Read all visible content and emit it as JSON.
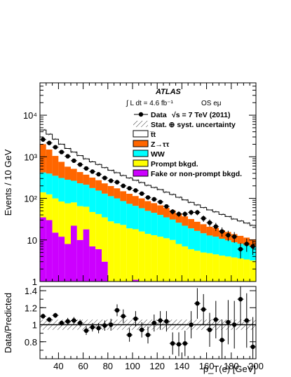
{
  "chart_data": [
    {
      "type": "stacked-bar-histogram",
      "title": "",
      "experiment_label": "ATLAS",
      "luminosity_label": "∫ L dt = 4.6 fb⁻¹",
      "channel_label": "OS eμ",
      "ylabel": "Events / 10 GeV",
      "xlabel": "",
      "yscale": "log",
      "ylim": [
        1,
        60000
      ],
      "xlim": [
        25,
        200
      ],
      "yticks": [
        {
          "v": 10,
          "label": "10"
        },
        {
          "v": 100,
          "label": "10²"
        },
        {
          "v": 1000,
          "label": "10³"
        },
        {
          "v": 10000,
          "label": "10⁴"
        }
      ],
      "bin_edges": [
        25,
        30,
        35,
        40,
        45,
        50,
        55,
        60,
        65,
        70,
        75,
        80,
        85,
        90,
        95,
        100,
        105,
        110,
        115,
        120,
        125,
        130,
        135,
        140,
        145,
        150,
        155,
        160,
        165,
        170,
        175,
        180,
        185,
        190,
        195,
        200
      ],
      "stack": [
        {
          "name": "Fake or non-prompt bkgd.",
          "color": "#cc00ff",
          "values": [
            35,
            30,
            15,
            12,
            8,
            22,
            10,
            18,
            7,
            6,
            3,
            1,
            1,
            1,
            1,
            1.1,
            1,
            1,
            1,
            1,
            1,
            1,
            1,
            1,
            1,
            1,
            1,
            1,
            1,
            1,
            1,
            1,
            1,
            1,
            1
          ]
        },
        {
          "name": "Prompt bkgd.",
          "color": "#ffff00",
          "values": [
            105,
            95,
            85,
            72,
            68,
            58,
            55,
            45,
            40,
            36,
            32,
            27,
            24,
            22,
            18,
            17,
            15,
            13,
            12,
            11,
            10,
            9,
            7,
            6,
            5,
            4.5,
            4,
            3.8,
            3.5,
            3.2,
            3,
            2.8,
            2.6,
            2.4,
            2.2
          ]
        },
        {
          "name": "WW",
          "color": "#00ffff",
          "values": [
            280,
            270,
            250,
            225,
            205,
            185,
            165,
            150,
            130,
            112,
            95,
            85,
            75,
            63,
            55,
            48,
            42,
            36,
            32,
            28,
            24,
            21,
            18,
            15,
            13,
            11,
            9.5,
            8,
            7.5,
            6.5,
            5.8,
            5,
            4.5,
            4,
            3.6
          ]
        },
        {
          "name": "Z→ττ",
          "color": "#ff6600",
          "values": [
            1600,
            1100,
            700,
            450,
            300,
            250,
            200,
            160,
            140,
            120,
            100,
            85,
            75,
            63,
            55,
            48,
            42,
            36,
            32,
            28,
            24,
            21,
            18,
            15,
            13,
            11,
            9.5,
            8,
            7.5,
            6.5,
            5.8,
            5,
            4.5,
            4,
            3.6
          ]
        },
        {
          "name": "t̅t",
          "color": "#ffffff",
          "values": [
            2400,
            2000,
            1600,
            1250,
            1000,
            780,
            640,
            520,
            440,
            380,
            320,
            275,
            240,
            205,
            180,
            158,
            140,
            120,
            106,
            95,
            82,
            72,
            62,
            55,
            48,
            42,
            36,
            32,
            28,
            24,
            21,
            18,
            16,
            14,
            12
          ]
        }
      ],
      "uncertainty_band": {
        "label": "Stat. ⊕ syst. uncertainty",
        "relative": 0.06
      },
      "data": {
        "name": "Data",
        "label_extra": "√s = 7 TeV (2011)",
        "x": [
          27.5,
          32.5,
          37.5,
          42.5,
          47.5,
          52.5,
          57.5,
          62.5,
          67.5,
          72.5,
          77.5,
          82.5,
          87.5,
          92.5,
          97.5,
          102.5,
          107.5,
          112.5,
          117.5,
          122.5,
          127.5,
          132.5,
          137.5,
          142.5,
          147.5,
          152.5,
          157.5,
          162.5,
          167.5,
          172.5,
          177.5,
          182.5,
          187.5,
          192.5,
          197.5
        ],
        "y": [
          2600,
          2150,
          1700,
          1300,
          1030,
          805,
          650,
          525,
          440,
          380,
          310,
          265,
          245,
          200,
          175,
          155,
          130,
          105,
          95,
          82,
          64,
          48,
          42,
          42,
          46,
          46,
          33,
          26,
          21,
          16,
          13,
          12,
          6,
          8,
          7
        ]
      }
    },
    {
      "type": "scatter",
      "title": "",
      "ylabel": "Data/Predicted",
      "xlabel": "p_T(e) [GeV]",
      "xlim": [
        25,
        200
      ],
      "ylim": [
        0.6,
        1.45
      ],
      "yticks": [
        0.8,
        1,
        1.2,
        1.4
      ],
      "xticks": [
        40,
        60,
        80,
        100,
        120,
        140,
        160,
        180,
        200
      ],
      "reference_line": 1,
      "band_halfwidth": 0.06,
      "x": [
        27.5,
        32.5,
        37.5,
        42.5,
        47.5,
        52.5,
        57.5,
        62.5,
        67.5,
        72.5,
        77.5,
        82.5,
        87.5,
        92.5,
        97.5,
        102.5,
        107.5,
        112.5,
        117.5,
        122.5,
        127.5,
        132.5,
        137.5,
        142.5,
        147.5,
        152.5,
        157.5,
        162.5,
        167.5,
        172.5,
        177.5,
        182.5,
        187.5,
        192.5,
        197.5
      ],
      "y": [
        1.1,
        1.06,
        1.11,
        1.02,
        1.04,
        1.05,
        1.02,
        0.93,
        0.97,
        0.96,
        0.99,
        1.0,
        1.17,
        1.1,
        0.88,
        1.07,
        0.94,
        0.88,
        1.02,
        1.05,
        1.04,
        0.78,
        0.77,
        0.78,
        1.0,
        1.25,
        1.18,
        0.94,
        1.06,
        0.82,
        1.03,
        1.0,
        1.3,
        1.05,
        0.74
      ],
      "err": [
        0.03,
        0.03,
        0.03,
        0.03,
        0.04,
        0.04,
        0.04,
        0.05,
        0.05,
        0.06,
        0.06,
        0.07,
        0.07,
        0.08,
        0.08,
        0.09,
        0.09,
        0.1,
        0.1,
        0.11,
        0.12,
        0.13,
        0.14,
        0.15,
        0.16,
        0.18,
        0.18,
        0.2,
        0.22,
        0.24,
        0.26,
        0.28,
        0.3,
        0.32,
        0.35
      ]
    }
  ]
}
